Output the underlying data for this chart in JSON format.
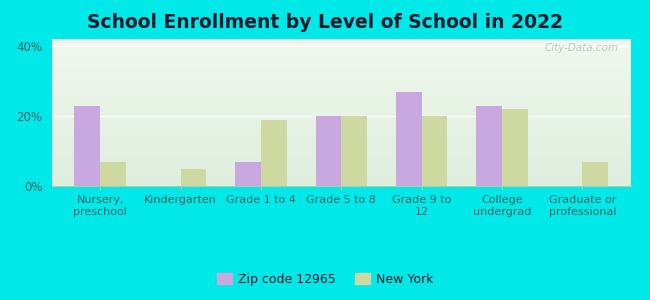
{
  "title": "School Enrollment by Level of School in 2022",
  "categories": [
    "Nursery,\npreschool",
    "Kindergarten",
    "Grade 1 to 4",
    "Grade 5 to 8",
    "Grade 9 to\n12",
    "College\nundergrad",
    "Graduate or\nprofessional"
  ],
  "zip_values": [
    23,
    0,
    7,
    20,
    27,
    23,
    0
  ],
  "ny_values": [
    7,
    5,
    19,
    20,
    20,
    22,
    7
  ],
  "zip_color": "#c9a8df",
  "ny_color": "#cdd9a0",
  "background_outer": "#00e8e8",
  "yticks": [
    0,
    20,
    40
  ],
  "ylim": [
    0,
    42
  ],
  "legend_zip_label": "Zip code 12965",
  "legend_ny_label": "New York",
  "watermark": "City-Data.com",
  "title_fontsize": 13.5,
  "tick_fontsize": 8,
  "legend_fontsize": 9,
  "title_color": "#1a1a2e",
  "tick_color": "#336666",
  "bar_width": 0.32
}
